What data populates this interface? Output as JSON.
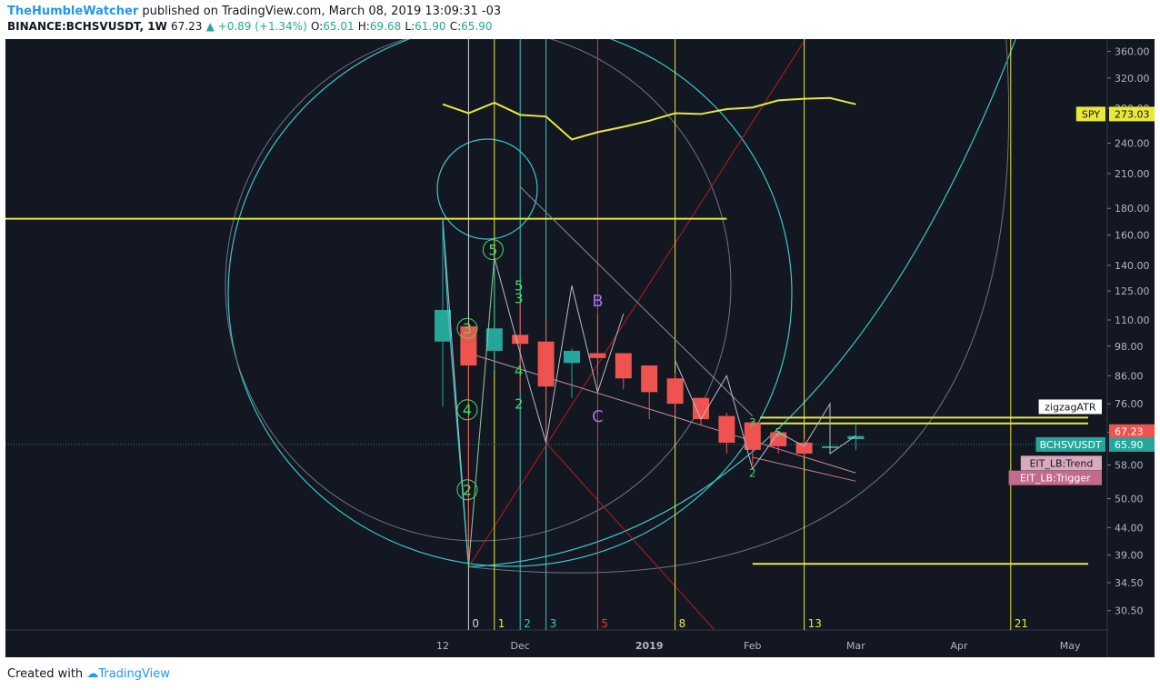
{
  "header": {
    "author": "TheHumbleWatcher",
    "published_text": "published on TradingView.com, March 08, 2019 13:09:31 -03",
    "symbol": "BINANCE:BCHSVUSDT, 1W",
    "last": "67.23",
    "change": "▲ +0.89 (+1.34%)",
    "o_label": "O:",
    "o": "65.01",
    "h_label": "H:",
    "h": "69.68",
    "l_label": "L:",
    "l": "61.90",
    "c_label": "C:",
    "c": "65.90"
  },
  "footer": {
    "created_with": "Created with",
    "brand": "TradingView"
  },
  "colors": {
    "background": "#131722",
    "up": "#26a69a",
    "down": "#ef5350",
    "yellow": "#e8e83a",
    "cyan": "#3bc6c6",
    "green": "#4cd964",
    "purple": "#a56ee8"
  },
  "chart_data": {
    "type": "candlestick",
    "y_scale": "log",
    "ylim": [
      28,
      380
    ],
    "y_ticks": [
      "360.00",
      "320.00",
      "280.00",
      "240.00",
      "210.00",
      "180.00",
      "160.00",
      "140.00",
      "125.00",
      "110.00",
      "98.00",
      "86.00",
      "76.00",
      "67.00",
      "58.00",
      "50.00",
      "44.00",
      "39.00",
      "34.50",
      "30.50"
    ],
    "x_ticks": [
      {
        "label": "12",
        "idx": 0
      },
      {
        "label": "Dec",
        "idx": 3
      },
      {
        "label": "2019",
        "idx": 8
      },
      {
        "label": "Feb",
        "idx": 12
      },
      {
        "label": "Mar",
        "idx": 16
      },
      {
        "label": "Apr",
        "idx": 20
      },
      {
        "label": "May",
        "idx": 24.3
      }
    ],
    "candles": [
      {
        "o": 100,
        "h": 172,
        "l": 75,
        "c": 115
      },
      {
        "o": 107,
        "h": 108,
        "l": 37,
        "c": 90
      },
      {
        "o": 96,
        "h": 145,
        "l": 88,
        "c": 106
      },
      {
        "o": 103,
        "h": 118,
        "l": 80,
        "c": 99
      },
      {
        "o": 100,
        "h": 110,
        "l": 64,
        "c": 82
      },
      {
        "o": 91,
        "h": 97,
        "l": 78,
        "c": 96
      },
      {
        "o": 95,
        "h": 113,
        "l": 86,
        "c": 93
      },
      {
        "o": 95,
        "h": 95,
        "l": 81,
        "c": 85
      },
      {
        "o": 90,
        "h": 90,
        "l": 71,
        "c": 80
      },
      {
        "o": 85,
        "h": 87,
        "l": 72,
        "c": 76
      },
      {
        "o": 78,
        "h": 78,
        "l": 69,
        "c": 71
      },
      {
        "o": 72,
        "h": 73,
        "l": 61,
        "c": 64
      },
      {
        "o": 70,
        "h": 70,
        "l": 58,
        "c": 62
      },
      {
        "o": 67,
        "h": 67,
        "l": 61,
        "c": 63
      },
      {
        "o": 64,
        "h": 65,
        "l": 60,
        "c": 61
      },
      {
        "o": 63,
        "h": 63,
        "l": 62,
        "c": 63
      },
      {
        "o": 65.01,
        "h": 69.68,
        "l": 61.9,
        "c": 65.9
      }
    ],
    "spy_series": {
      "label": "SPY",
      "value": "273.03",
      "points": [
        [
          0,
          285
        ],
        [
          1,
          274
        ],
        [
          2,
          287
        ],
        [
          3,
          272
        ],
        [
          4,
          270
        ],
        [
          5,
          244
        ],
        [
          6,
          252
        ],
        [
          7,
          258
        ],
        [
          8,
          265
        ],
        [
          9,
          274
        ],
        [
          10,
          273
        ],
        [
          11,
          279
        ],
        [
          12,
          281
        ],
        [
          13,
          290
        ],
        [
          14,
          292
        ],
        [
          15,
          293
        ],
        [
          16,
          285
        ]
      ]
    },
    "fib_time_lines": [
      {
        "label": "0",
        "idx": 1.0,
        "color": "#d1d4dc"
      },
      {
        "label": "1",
        "idx": 2.0,
        "color": "#e8e83a"
      },
      {
        "label": "2",
        "idx": 3.0,
        "color": "#3bc6c6"
      },
      {
        "label": "3",
        "idx": 4.0,
        "color": "#3bc6c6"
      },
      {
        "label": "5",
        "idx": 6.0,
        "color": "#e53935"
      },
      {
        "label": "8",
        "idx": 9.0,
        "color": "#e8e83a"
      },
      {
        "label": "13",
        "idx": 14.0,
        "color": "#e8e83a"
      },
      {
        "label": "21",
        "idx": 22.0,
        "color": "#e8e83a"
      }
    ],
    "horizontal_levels": [
      {
        "value": 172,
        "from_idx": -17.0,
        "to_idx": 11.0
      },
      {
        "value": 71.5,
        "from_idx": 12.3,
        "to_idx": 25.0
      },
      {
        "value": 69.7,
        "from_idx": 12.3,
        "to_idx": 25.0
      },
      {
        "value": 37.5,
        "from_idx": 12.0,
        "to_idx": 25.0
      }
    ],
    "price_labels": [
      {
        "text": "SPY",
        "value": "273.03",
        "y": 273.03,
        "bg": "#e8e83a",
        "fg": "#131722"
      },
      {
        "text": "",
        "value": "67.23",
        "y": 67.23,
        "bg": "#ef5350",
        "fg": "#ffffff"
      },
      {
        "text": "BCHSVUSDT",
        "value": "65.90",
        "y": 63.5,
        "bg": "#26a69a",
        "fg": "#ffffff"
      }
    ],
    "legend_tags": [
      "zigzagATR",
      "EIT_LB:Trend",
      "EIT_LB:Trigger"
    ],
    "wave_labels": [
      {
        "text": "3",
        "idx": 0.95,
        "y": 106,
        "circled": true,
        "color": "#4cd964",
        "size": 16
      },
      {
        "text": "4",
        "idx": 0.95,
        "y": 74,
        "circled": true,
        "color": "#4cd964",
        "size": 16
      },
      {
        "text": "2",
        "idx": 0.95,
        "y": 52,
        "circled": true,
        "color": "#4cd964",
        "size": 16
      },
      {
        "text": "5",
        "idx": 1.95,
        "y": 150,
        "circled": true,
        "color": "#4cd964",
        "size": 16
      },
      {
        "text": "5",
        "idx": 2.95,
        "y": 128,
        "circled": false,
        "color": "#4cd964",
        "size": 15
      },
      {
        "text": "3",
        "idx": 2.95,
        "y": 121,
        "circled": false,
        "color": "#4cd964",
        "size": 15
      },
      {
        "text": "4",
        "idx": 2.95,
        "y": 88,
        "circled": false,
        "color": "#4cd964",
        "size": 15
      },
      {
        "text": "2",
        "idx": 2.95,
        "y": 76,
        "circled": false,
        "color": "#4cd964",
        "size": 15
      },
      {
        "text": "B",
        "idx": 6.0,
        "y": 120,
        "circled": false,
        "color": "#a56ee8",
        "size": 18
      },
      {
        "text": "C",
        "idx": 6.0,
        "y": 72,
        "circled": false,
        "color": "#a56ee8",
        "size": 18
      },
      {
        "text": "3",
        "idx": 12.0,
        "y": 70,
        "circled": false,
        "color": "#4cd964",
        "size": 12
      },
      {
        "text": "5",
        "idx": 13.0,
        "y": 67,
        "circled": false,
        "color": "#4cd964",
        "size": 12
      },
      {
        "text": "2",
        "idx": 12.0,
        "y": 56,
        "circled": false,
        "color": "#4cd964",
        "size": 12
      }
    ],
    "zigzag": [
      [
        0,
        172
      ],
      [
        1,
        37
      ],
      [
        2,
        145
      ],
      [
        3,
        95
      ],
      [
        4,
        64
      ],
      [
        5,
        128
      ],
      [
        6,
        80
      ],
      [
        7,
        113
      ]
    ],
    "zigzag_small": [
      [
        9,
        92
      ],
      [
        10,
        71
      ],
      [
        11,
        86
      ],
      [
        12,
        57
      ],
      [
        13,
        67
      ],
      [
        14,
        63
      ],
      [
        15,
        76
      ],
      [
        15,
        61
      ],
      [
        16,
        66
      ]
    ],
    "trend_line": [
      [
        1,
        95
      ],
      [
        16,
        56
      ]
    ],
    "trend_line2": [
      [
        3,
        198
      ],
      [
        12,
        72
      ]
    ],
    "trigger_line": [
      [
        12,
        60
      ],
      [
        16,
        54
      ]
    ]
  }
}
